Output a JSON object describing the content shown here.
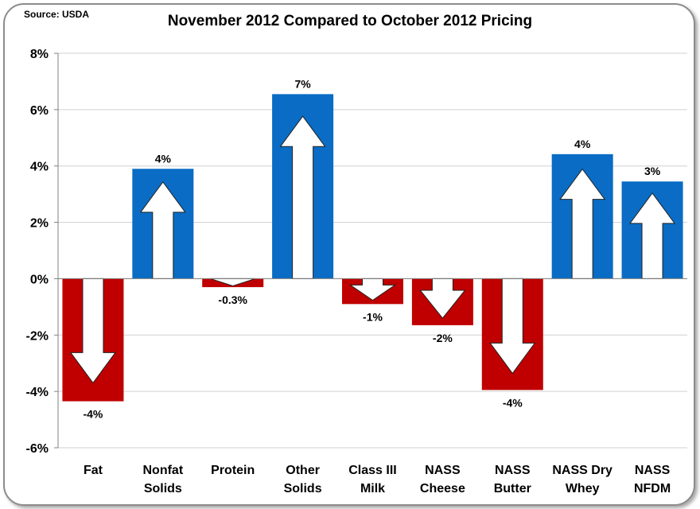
{
  "source_note": "Source: USDA",
  "chart_data": {
    "type": "bar",
    "title": "November 2012 Compared to October 2012 Pricing",
    "categories": [
      [
        "Fat"
      ],
      [
        "Nonfat",
        "Solids"
      ],
      [
        "Protein"
      ],
      [
        "Other",
        "Solids"
      ],
      [
        "Class III",
        "Milk"
      ],
      [
        "NASS",
        "Cheese"
      ],
      [
        "NASS",
        "Butter"
      ],
      [
        "NASS Dry",
        "Whey"
      ],
      [
        "NASS",
        "NFDM"
      ]
    ],
    "values": [
      -4.35,
      3.9,
      -0.3,
      6.55,
      -0.9,
      -1.65,
      -3.95,
      4.42,
      3.45
    ],
    "data_labels": [
      "-4%",
      "4%",
      "-0.3%",
      "7%",
      "-1%",
      "-2%",
      "-4%",
      "4%",
      "3%"
    ],
    "ylim": [
      -6,
      8
    ],
    "yticks": [
      -6,
      -4,
      -2,
      0,
      2,
      4,
      6,
      8
    ],
    "ytick_labels": [
      "-6%",
      "-4%",
      "-2%",
      "0%",
      "2%",
      "4%",
      "6%",
      "8%"
    ],
    "grid": true,
    "legend": "none",
    "colors": {
      "positive": "#0a6cc4",
      "negative": "#c00000",
      "arrow": "#ffffff",
      "grid": "#d0d0d0"
    }
  }
}
